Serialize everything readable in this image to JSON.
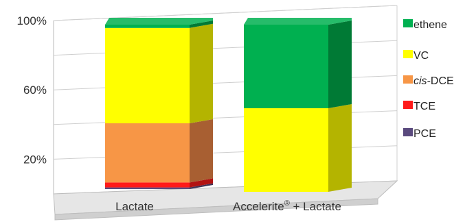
{
  "chart_data": {
    "type": "bar",
    "stacked": true,
    "percent": true,
    "three_d": true,
    "grid": true,
    "legend_position": "right",
    "categories": [
      "Lactate",
      "Accelerite® + Lactate"
    ],
    "category_base": [
      "Lactate",
      "Accelerite"
    ],
    "category_superscript": [
      "",
      "®"
    ],
    "category_suffix": [
      "",
      " + Lactate"
    ],
    "y_ticks": [
      "100%",
      "60%",
      "20%"
    ],
    "y_tick_values": [
      100,
      60,
      20
    ],
    "ylim": [
      0,
      100
    ],
    "series": [
      {
        "name": "PCE",
        "italic_prefix": "",
        "rest": "PCE",
        "color": "#5a4a7e",
        "side_color": "#3f3457",
        "values": [
          1,
          0
        ]
      },
      {
        "name": "TCE",
        "italic_prefix": "",
        "rest": "TCE",
        "color": "#ff1a1a",
        "side_color": "#b21212",
        "values": [
          3,
          0
        ]
      },
      {
        "name": "cis-DCE",
        "italic_prefix": "cis",
        "rest": "-DCE",
        "color": "#f79646",
        "side_color": "#a85f32",
        "values": [
          36,
          0
        ]
      },
      {
        "name": "VC",
        "italic_prefix": "",
        "rest": "VC",
        "color": "#ffff00",
        "side_color": "#b4b400",
        "values": [
          58,
          50
        ]
      },
      {
        "name": "ethene",
        "italic_prefix": "",
        "rest": "ethene",
        "color": "#00b050",
        "side_color": "#007a35",
        "values": [
          2,
          50
        ]
      }
    ]
  }
}
